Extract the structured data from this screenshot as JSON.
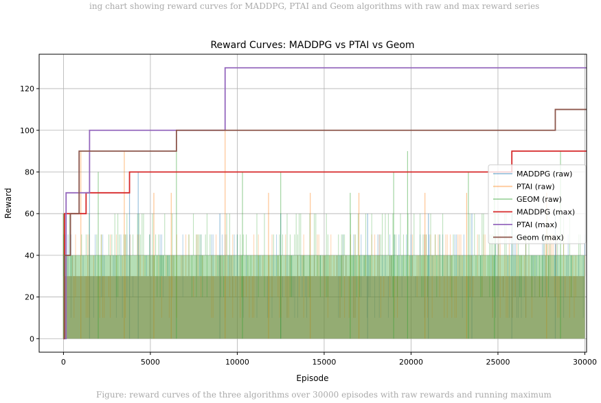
{
  "chart_data": {
    "type": "line",
    "title": "Reward Curves: MADDPG vs PTAI vs Geom",
    "xlabel": "Episode",
    "ylabel": "Reward",
    "xlim": [
      -1400,
      30100
    ],
    "ylim": [
      -6.5,
      136.5
    ],
    "xticks": [
      0,
      5000,
      10000,
      15000,
      20000,
      25000,
      30000
    ],
    "xtick_labels": [
      "0",
      "5000",
      "10000",
      "15000",
      "20000",
      "25000",
      "30000"
    ],
    "yticks": [
      0,
      20,
      40,
      60,
      80,
      100,
      120
    ],
    "ytick_labels": [
      "0",
      "20",
      "40",
      "60",
      "80",
      "100",
      "120"
    ],
    "grid": true,
    "legend_position": "center-right",
    "raw_series": [
      {
        "name": "MADDPG (raw)",
        "color": "#1f77b4",
        "opacity": 0.35,
        "base_band": [
          0,
          30
        ],
        "spikes": [
          [
            1500,
            80
          ],
          [
            3800,
            70
          ],
          [
            4300,
            80
          ],
          [
            9000,
            60
          ],
          [
            12500,
            60
          ],
          [
            17500,
            60
          ],
          [
            21000,
            60
          ],
          [
            23500,
            60
          ],
          [
            25800,
            60
          ],
          [
            28300,
            60
          ]
        ]
      },
      {
        "name": "PTAI (raw)",
        "color": "#ff7f0e",
        "opacity": 0.35,
        "base_band": [
          0,
          30
        ],
        "spikes": [
          [
            1000,
            90
          ],
          [
            3500,
            90
          ],
          [
            5200,
            70
          ],
          [
            6200,
            70
          ],
          [
            9300,
            100
          ],
          [
            11800,
            70
          ],
          [
            14200,
            70
          ],
          [
            17000,
            70
          ],
          [
            20800,
            70
          ],
          [
            23200,
            70
          ],
          [
            27800,
            70
          ]
        ]
      },
      {
        "name": "GEOM (raw)",
        "color": "#2ca02c",
        "opacity": 0.35,
        "base_band": [
          0,
          40
        ],
        "spikes": [
          [
            2000,
            80
          ],
          [
            6500,
            90
          ],
          [
            10300,
            80
          ],
          [
            12500,
            80
          ],
          [
            16500,
            70
          ],
          [
            19000,
            80
          ],
          [
            19800,
            90
          ],
          [
            23300,
            80
          ],
          [
            24800,
            80
          ],
          [
            28600,
            90
          ]
        ]
      }
    ],
    "max_series": [
      {
        "name": "MADDPG (max)",
        "color": "#d62728",
        "steps": [
          [
            0,
            0
          ],
          [
            60,
            60
          ],
          [
            1300,
            70
          ],
          [
            3800,
            80
          ],
          [
            25800,
            90
          ],
          [
            30100,
            90
          ]
        ]
      },
      {
        "name": "PTAI (max)",
        "color": "#9467bd",
        "steps": [
          [
            0,
            0
          ],
          [
            150,
            70
          ],
          [
            1500,
            100
          ],
          [
            9300,
            130
          ],
          [
            30100,
            130
          ]
        ]
      },
      {
        "name": "Geom (max)",
        "color": "#8c564b",
        "steps": [
          [
            0,
            0
          ],
          [
            50,
            40
          ],
          [
            400,
            60
          ],
          [
            900,
            90
          ],
          [
            6500,
            100
          ],
          [
            28300,
            110
          ],
          [
            30100,
            110
          ]
        ]
      }
    ]
  }
}
